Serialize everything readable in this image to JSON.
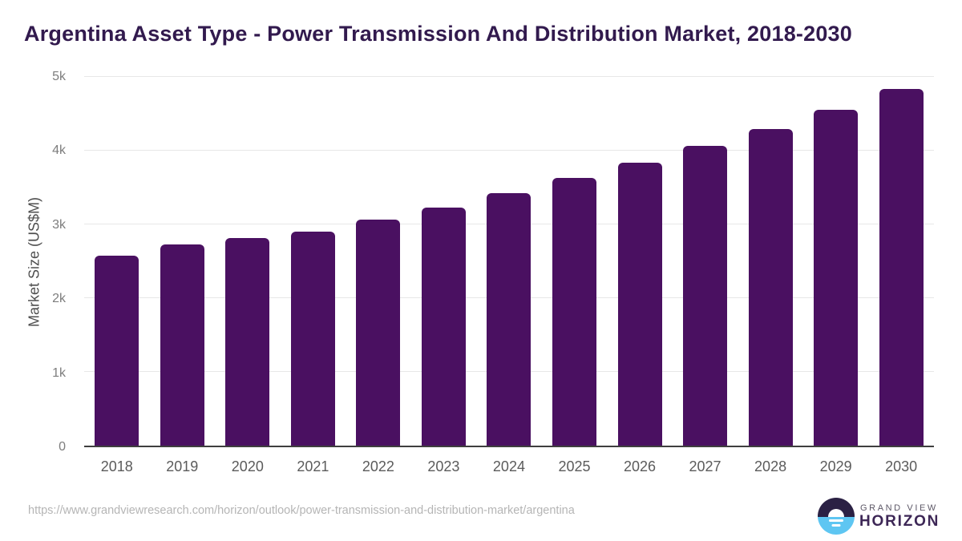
{
  "page": {
    "title": "Argentina Asset Type - Power Transmission And Distribution Market, 2018-2030",
    "source_url": "https://www.grandviewresearch.com/horizon/outlook/power-transmission-and-distribution-market/argentina"
  },
  "logo": {
    "top_text": "GRAND VIEW",
    "bottom_text": "HORIZON"
  },
  "colors": {
    "bar": "#4a1061",
    "title": "#321a4e",
    "axis_title": "#4f4f4f",
    "tick_label": "#7d7d7d",
    "x_label": "#5b5b5b",
    "grid": "#e7e7e7",
    "axis_line": "#3f3f3f",
    "url": "#b5b5b5",
    "logo_dark": "#2b2144",
    "logo_blue": "#5ec6f2",
    "logo_top_text": "#5c5766",
    "logo_bottom_text": "#3d2756"
  },
  "chart_data": {
    "type": "bar",
    "title": "Argentina Asset Type - Power Transmission And Distribution Market, 2018-2030",
    "categories": [
      "2018",
      "2019",
      "2020",
      "2021",
      "2022",
      "2023",
      "2024",
      "2025",
      "2026",
      "2027",
      "2028",
      "2029",
      "2030"
    ],
    "values": [
      2580,
      2730,
      2810,
      2900,
      3060,
      3230,
      3420,
      3630,
      3840,
      4060,
      4290,
      4550,
      4840
    ],
    "xlabel": "",
    "ylabel": "Market Size (US$M)",
    "ylim": [
      0,
      5000
    ],
    "ytick_values": [
      0,
      1000,
      2000,
      3000,
      4000,
      5000
    ],
    "ytick_labels": [
      "0",
      "1k",
      "2k",
      "3k",
      "4k",
      "5k"
    ],
    "grid": true,
    "legend_position": "none",
    "bar_corner_radius_px": 6
  }
}
